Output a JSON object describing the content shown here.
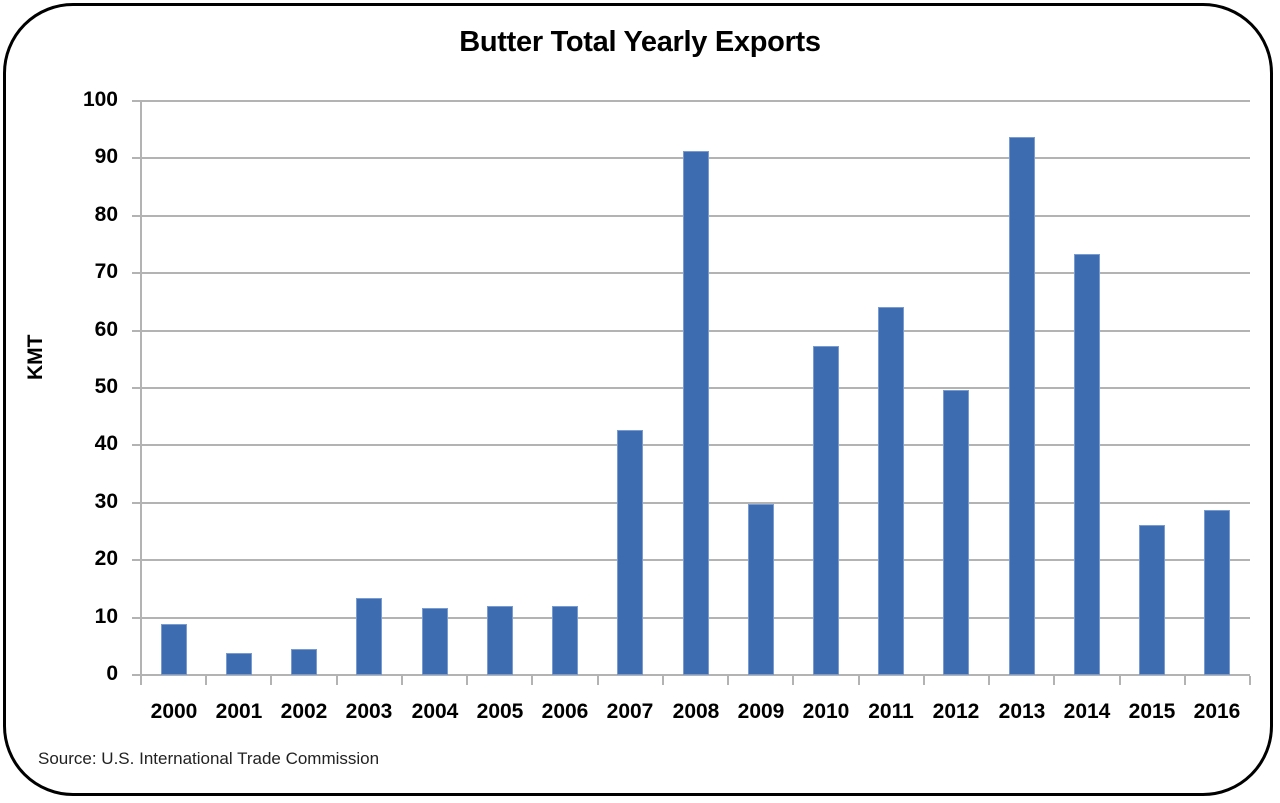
{
  "chart_data": {
    "type": "bar",
    "title": "Butter Total Yearly Exports",
    "xlabel": "",
    "ylabel": "KMT",
    "ylim": [
      0,
      100
    ],
    "yticks": [
      0,
      10,
      20,
      30,
      40,
      50,
      60,
      70,
      80,
      90,
      100
    ],
    "grid": true,
    "legend": null,
    "categories": [
      "2000",
      "2001",
      "2002",
      "2003",
      "2004",
      "2005",
      "2006",
      "2007",
      "2008",
      "2009",
      "2010",
      "2011",
      "2012",
      "2013",
      "2014",
      "2015",
      "2016"
    ],
    "values": [
      8.8,
      3.9,
      4.6,
      13.5,
      11.6,
      12.0,
      12.0,
      42.6,
      91.3,
      29.8,
      57.4,
      64.1,
      49.6,
      93.7,
      73.3,
      26.1,
      28.8
    ],
    "bar_color": "#3d6cb0",
    "annotations": [
      "Source:  U.S. International Trade Commission"
    ]
  },
  "source_note": "Source:  U.S. International Trade Commission"
}
